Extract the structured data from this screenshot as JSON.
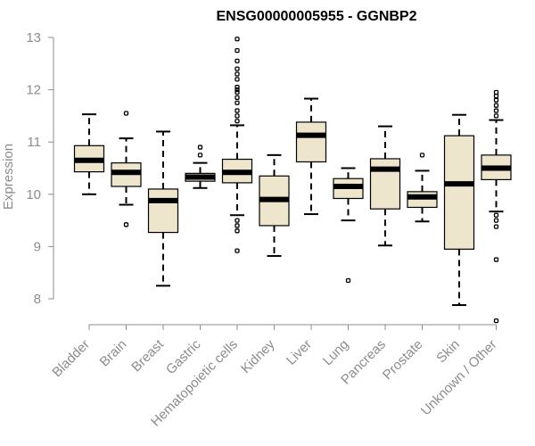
{
  "chart_data": {
    "type": "boxplot",
    "title": "ENSG00000005955 - GGNBP2",
    "xlabel": "",
    "ylabel": "Expression",
    "ylim": [
      7.5,
      13.1
    ],
    "yticks": [
      8,
      9,
      10,
      11,
      12,
      13
    ],
    "categories": [
      "Bladder",
      "Brain",
      "Breast",
      "Gastric",
      "Hematopoietic cells",
      "Kidney",
      "Liver",
      "Lung",
      "Pancreas",
      "Prostate",
      "Skin",
      "Unknown / Other"
    ],
    "boxes": [
      {
        "min": 10.0,
        "q1": 10.43,
        "median": 10.65,
        "q3": 10.93,
        "max": 11.53,
        "outliers": []
      },
      {
        "min": 9.8,
        "q1": 10.15,
        "median": 10.42,
        "q3": 10.6,
        "max": 11.07,
        "outliers": [
          9.42,
          11.55
        ]
      },
      {
        "min": 8.25,
        "q1": 9.27,
        "median": 9.88,
        "q3": 10.1,
        "max": 11.2,
        "outliers": []
      },
      {
        "min": 10.12,
        "q1": 10.25,
        "median": 10.33,
        "q3": 10.4,
        "max": 10.6,
        "outliers": [
          10.75,
          10.9
        ]
      },
      {
        "min": 9.6,
        "q1": 10.22,
        "median": 10.42,
        "q3": 10.67,
        "max": 11.32,
        "outliers": [
          8.92,
          9.3,
          9.4,
          9.5,
          11.4,
          11.5,
          11.6,
          11.75,
          11.85,
          11.95,
          12.0,
          12.05,
          12.2,
          12.3,
          12.4,
          12.55,
          12.75,
          12.97
        ]
      },
      {
        "min": 8.82,
        "q1": 9.4,
        "median": 9.9,
        "q3": 10.35,
        "max": 10.75,
        "outliers": []
      },
      {
        "min": 9.62,
        "q1": 10.62,
        "median": 11.13,
        "q3": 11.38,
        "max": 11.83,
        "outliers": []
      },
      {
        "min": 9.5,
        "q1": 9.92,
        "median": 10.15,
        "q3": 10.3,
        "max": 10.5,
        "outliers": [
          8.35
        ]
      },
      {
        "min": 9.02,
        "q1": 9.72,
        "median": 10.48,
        "q3": 10.68,
        "max": 11.3,
        "outliers": []
      },
      {
        "min": 9.48,
        "q1": 9.75,
        "median": 9.95,
        "q3": 10.05,
        "max": 10.45,
        "outliers": [
          10.75
        ]
      },
      {
        "min": 7.88,
        "q1": 8.95,
        "median": 10.2,
        "q3": 11.12,
        "max": 11.52,
        "outliers": []
      },
      {
        "min": 9.67,
        "q1": 10.28,
        "median": 10.5,
        "q3": 10.75,
        "max": 11.42,
        "outliers": [
          7.58,
          8.75,
          9.38,
          9.5,
          9.6,
          11.5,
          11.6,
          11.7,
          11.8,
          11.88,
          11.95
        ]
      }
    ]
  }
}
